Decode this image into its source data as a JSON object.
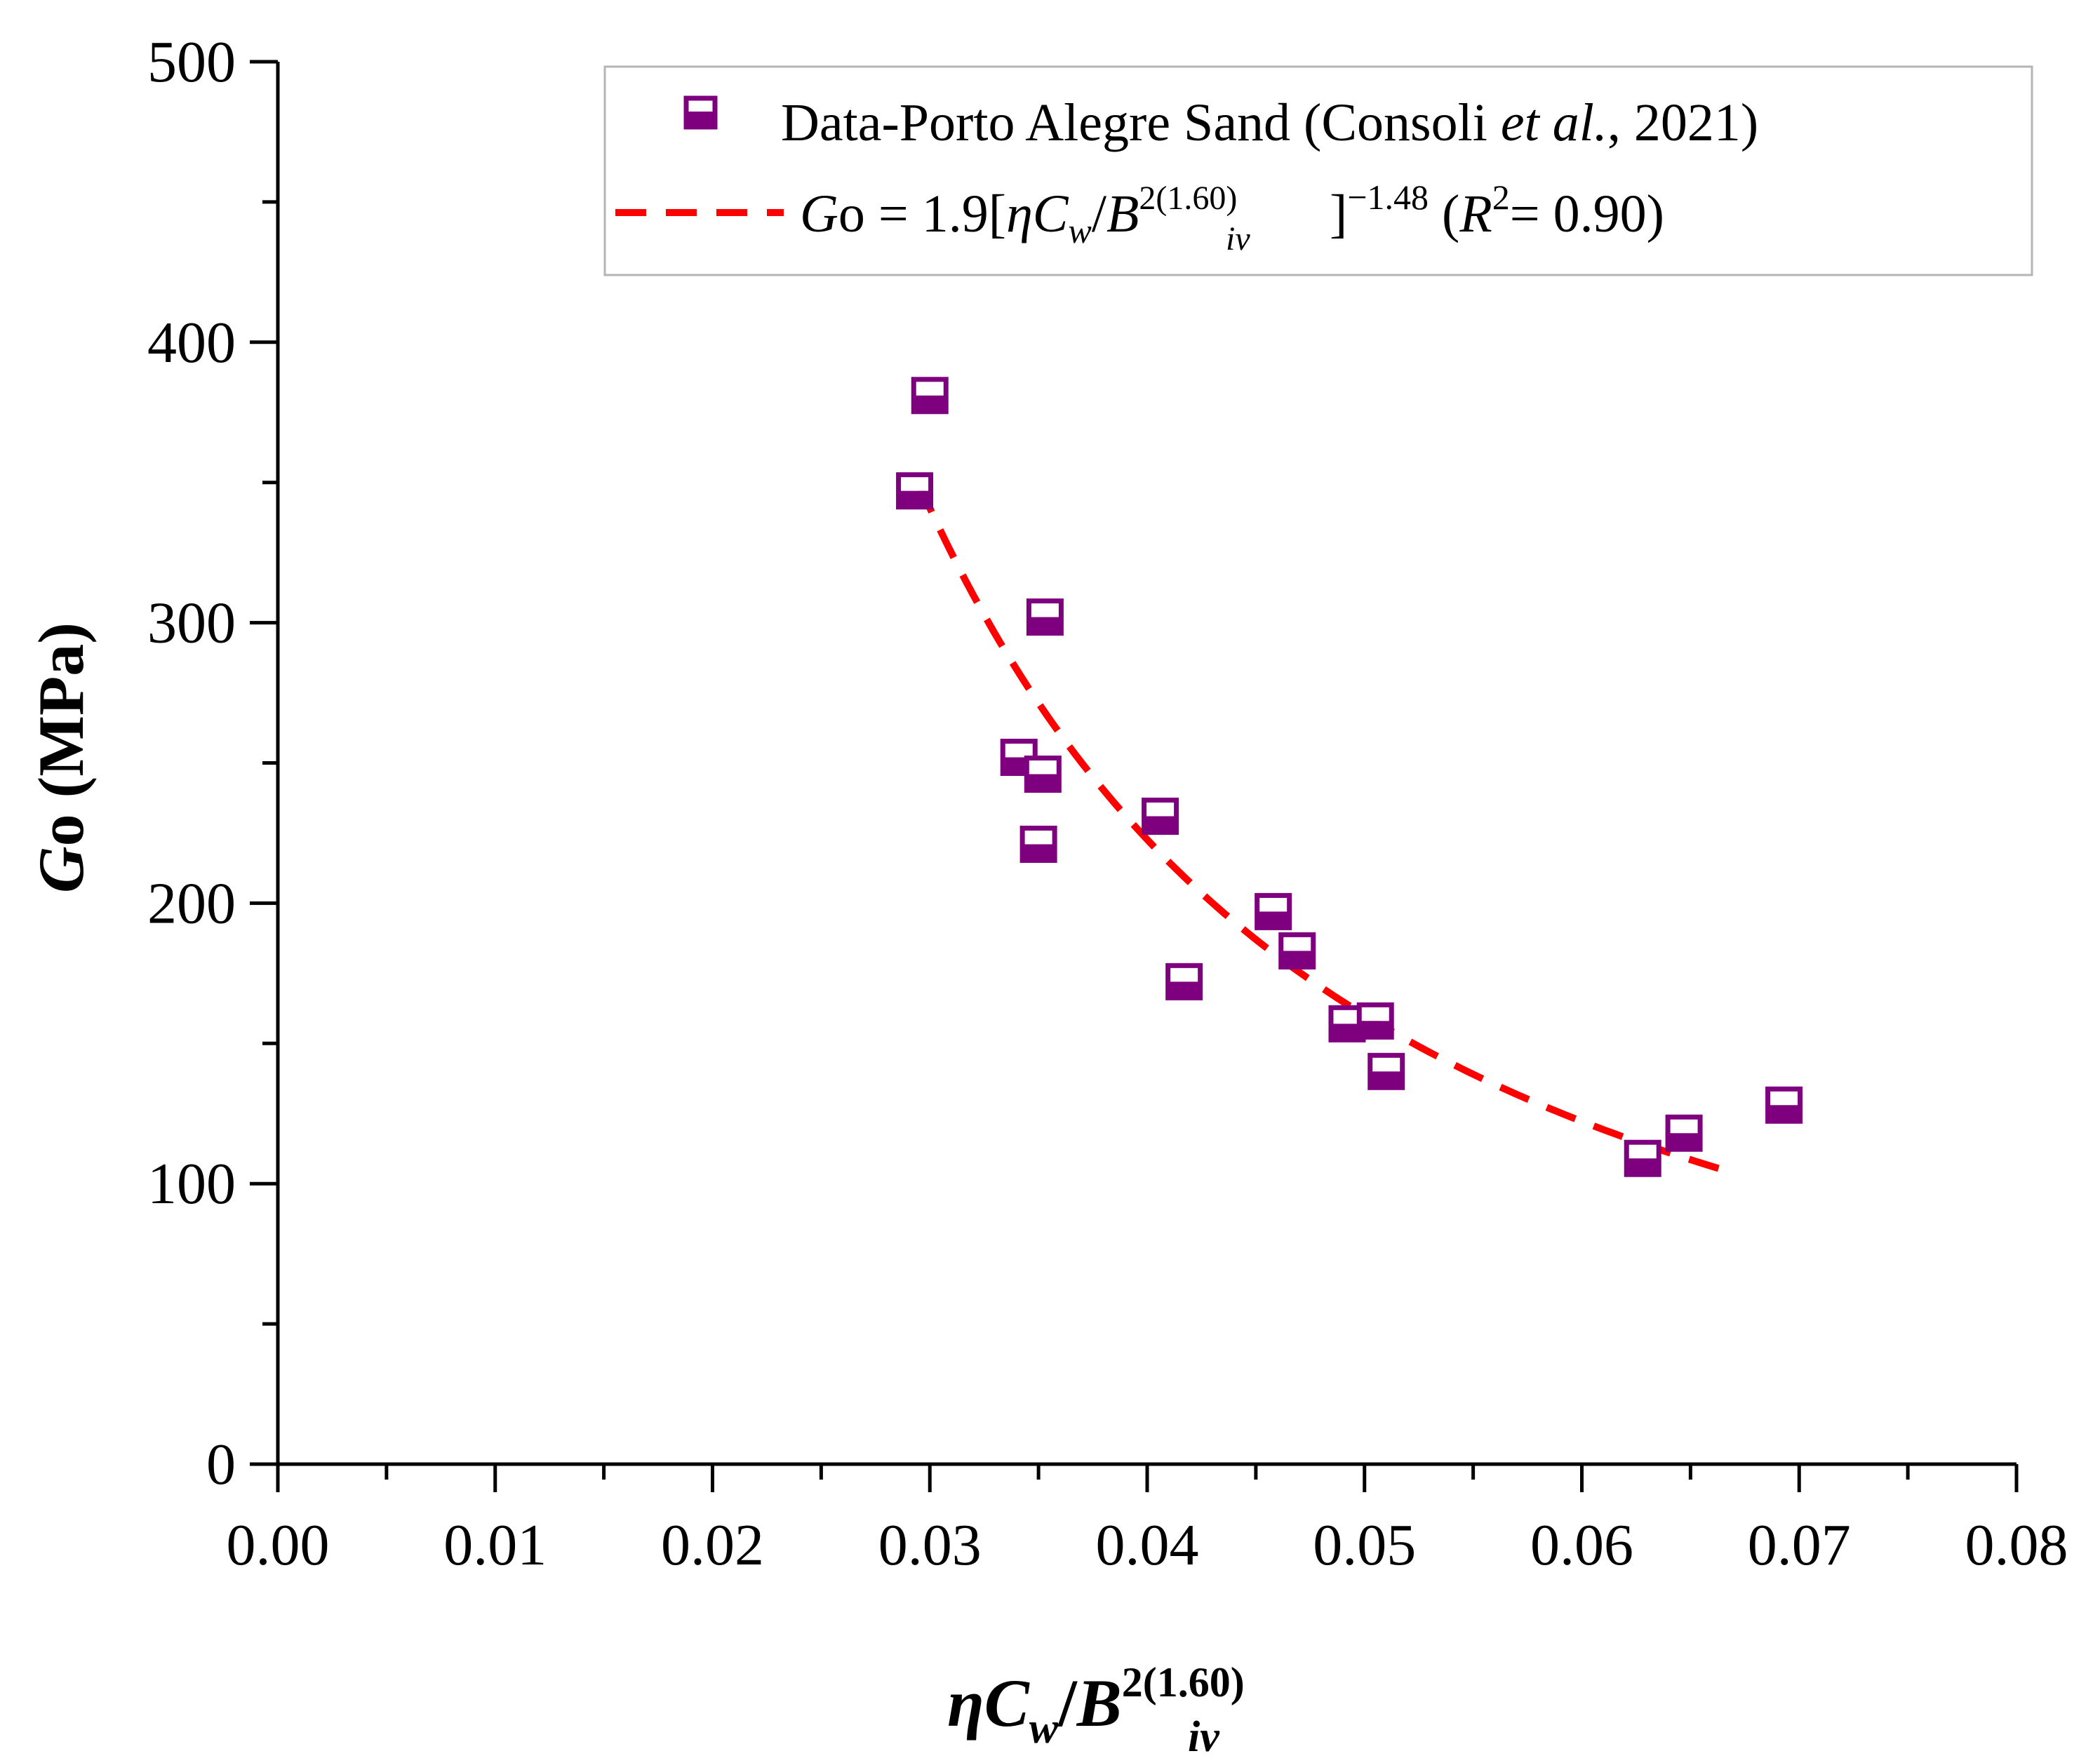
{
  "chart_data": {
    "type": "scatter",
    "title": "",
    "xlabel": {
      "eta": "η",
      "C": "C",
      "w": "w",
      "slash": "/",
      "B": "B",
      "iv": "iv",
      "exp": "2(1.60)"
    },
    "ylabel": {
      "G": "G",
      "rest": "o (MPa)"
    },
    "xlim": [
      0,
      0.08
    ],
    "ylim": [
      0,
      500
    ],
    "x_ticks": [
      "0.00",
      "0.01",
      "0.02",
      "0.03",
      "0.04",
      "0.05",
      "0.06",
      "0.07",
      "0.08"
    ],
    "y_ticks": [
      "0",
      "100",
      "200",
      "300",
      "400",
      "500"
    ],
    "grid": false,
    "legend_position": "top-right",
    "series": [
      {
        "name": "Data-Porto Alegre Sand (Consoli et al., 2021)",
        "kind": "scatter",
        "marker": "square-half-filled",
        "color": "#7f007f",
        "points": [
          {
            "x": 0.03,
            "y": 381
          },
          {
            "x": 0.0293,
            "y": 347
          },
          {
            "x": 0.0353,
            "y": 302
          },
          {
            "x": 0.0341,
            "y": 252
          },
          {
            "x": 0.0352,
            "y": 246
          },
          {
            "x": 0.035,
            "y": 221
          },
          {
            "x": 0.0406,
            "y": 231
          },
          {
            "x": 0.0417,
            "y": 172
          },
          {
            "x": 0.0458,
            "y": 197
          },
          {
            "x": 0.0469,
            "y": 183
          },
          {
            "x": 0.0492,
            "y": 157
          },
          {
            "x": 0.0505,
            "y": 158
          },
          {
            "x": 0.051,
            "y": 140
          },
          {
            "x": 0.0628,
            "y": 109
          },
          {
            "x": 0.0647,
            "y": 118
          },
          {
            "x": 0.0693,
            "y": 128
          }
        ]
      },
      {
        "name": "Go = 1.9[ηCw/Biv^2(1.60)]^-1.48 (R2= 0.90)",
        "kind": "fit-line",
        "style": "dashed",
        "color": "#ff0000",
        "coefficient": 1.9,
        "exponent": -1.48,
        "x_range": [
          0.0295,
          0.067
        ]
      }
    ],
    "legend": {
      "entry1": {
        "prefix": "Data-Porto Alegre Sand (Consoli ",
        "italic": "et al.",
        "suffix": ", 2021)"
      },
      "entry2": {
        "G": "G",
        "o_eq": "o = 1.9[",
        "eta": "η",
        "C": "C",
        "w": "w",
        "slash": "/",
        "B": "B",
        "exp": "2(1.60)",
        "iv": "iv",
        "close": "]",
        "power": "−1.48",
        "r_open": " (",
        "R": "R",
        "two": "2",
        "r_val": "= 0.90)"
      }
    }
  }
}
